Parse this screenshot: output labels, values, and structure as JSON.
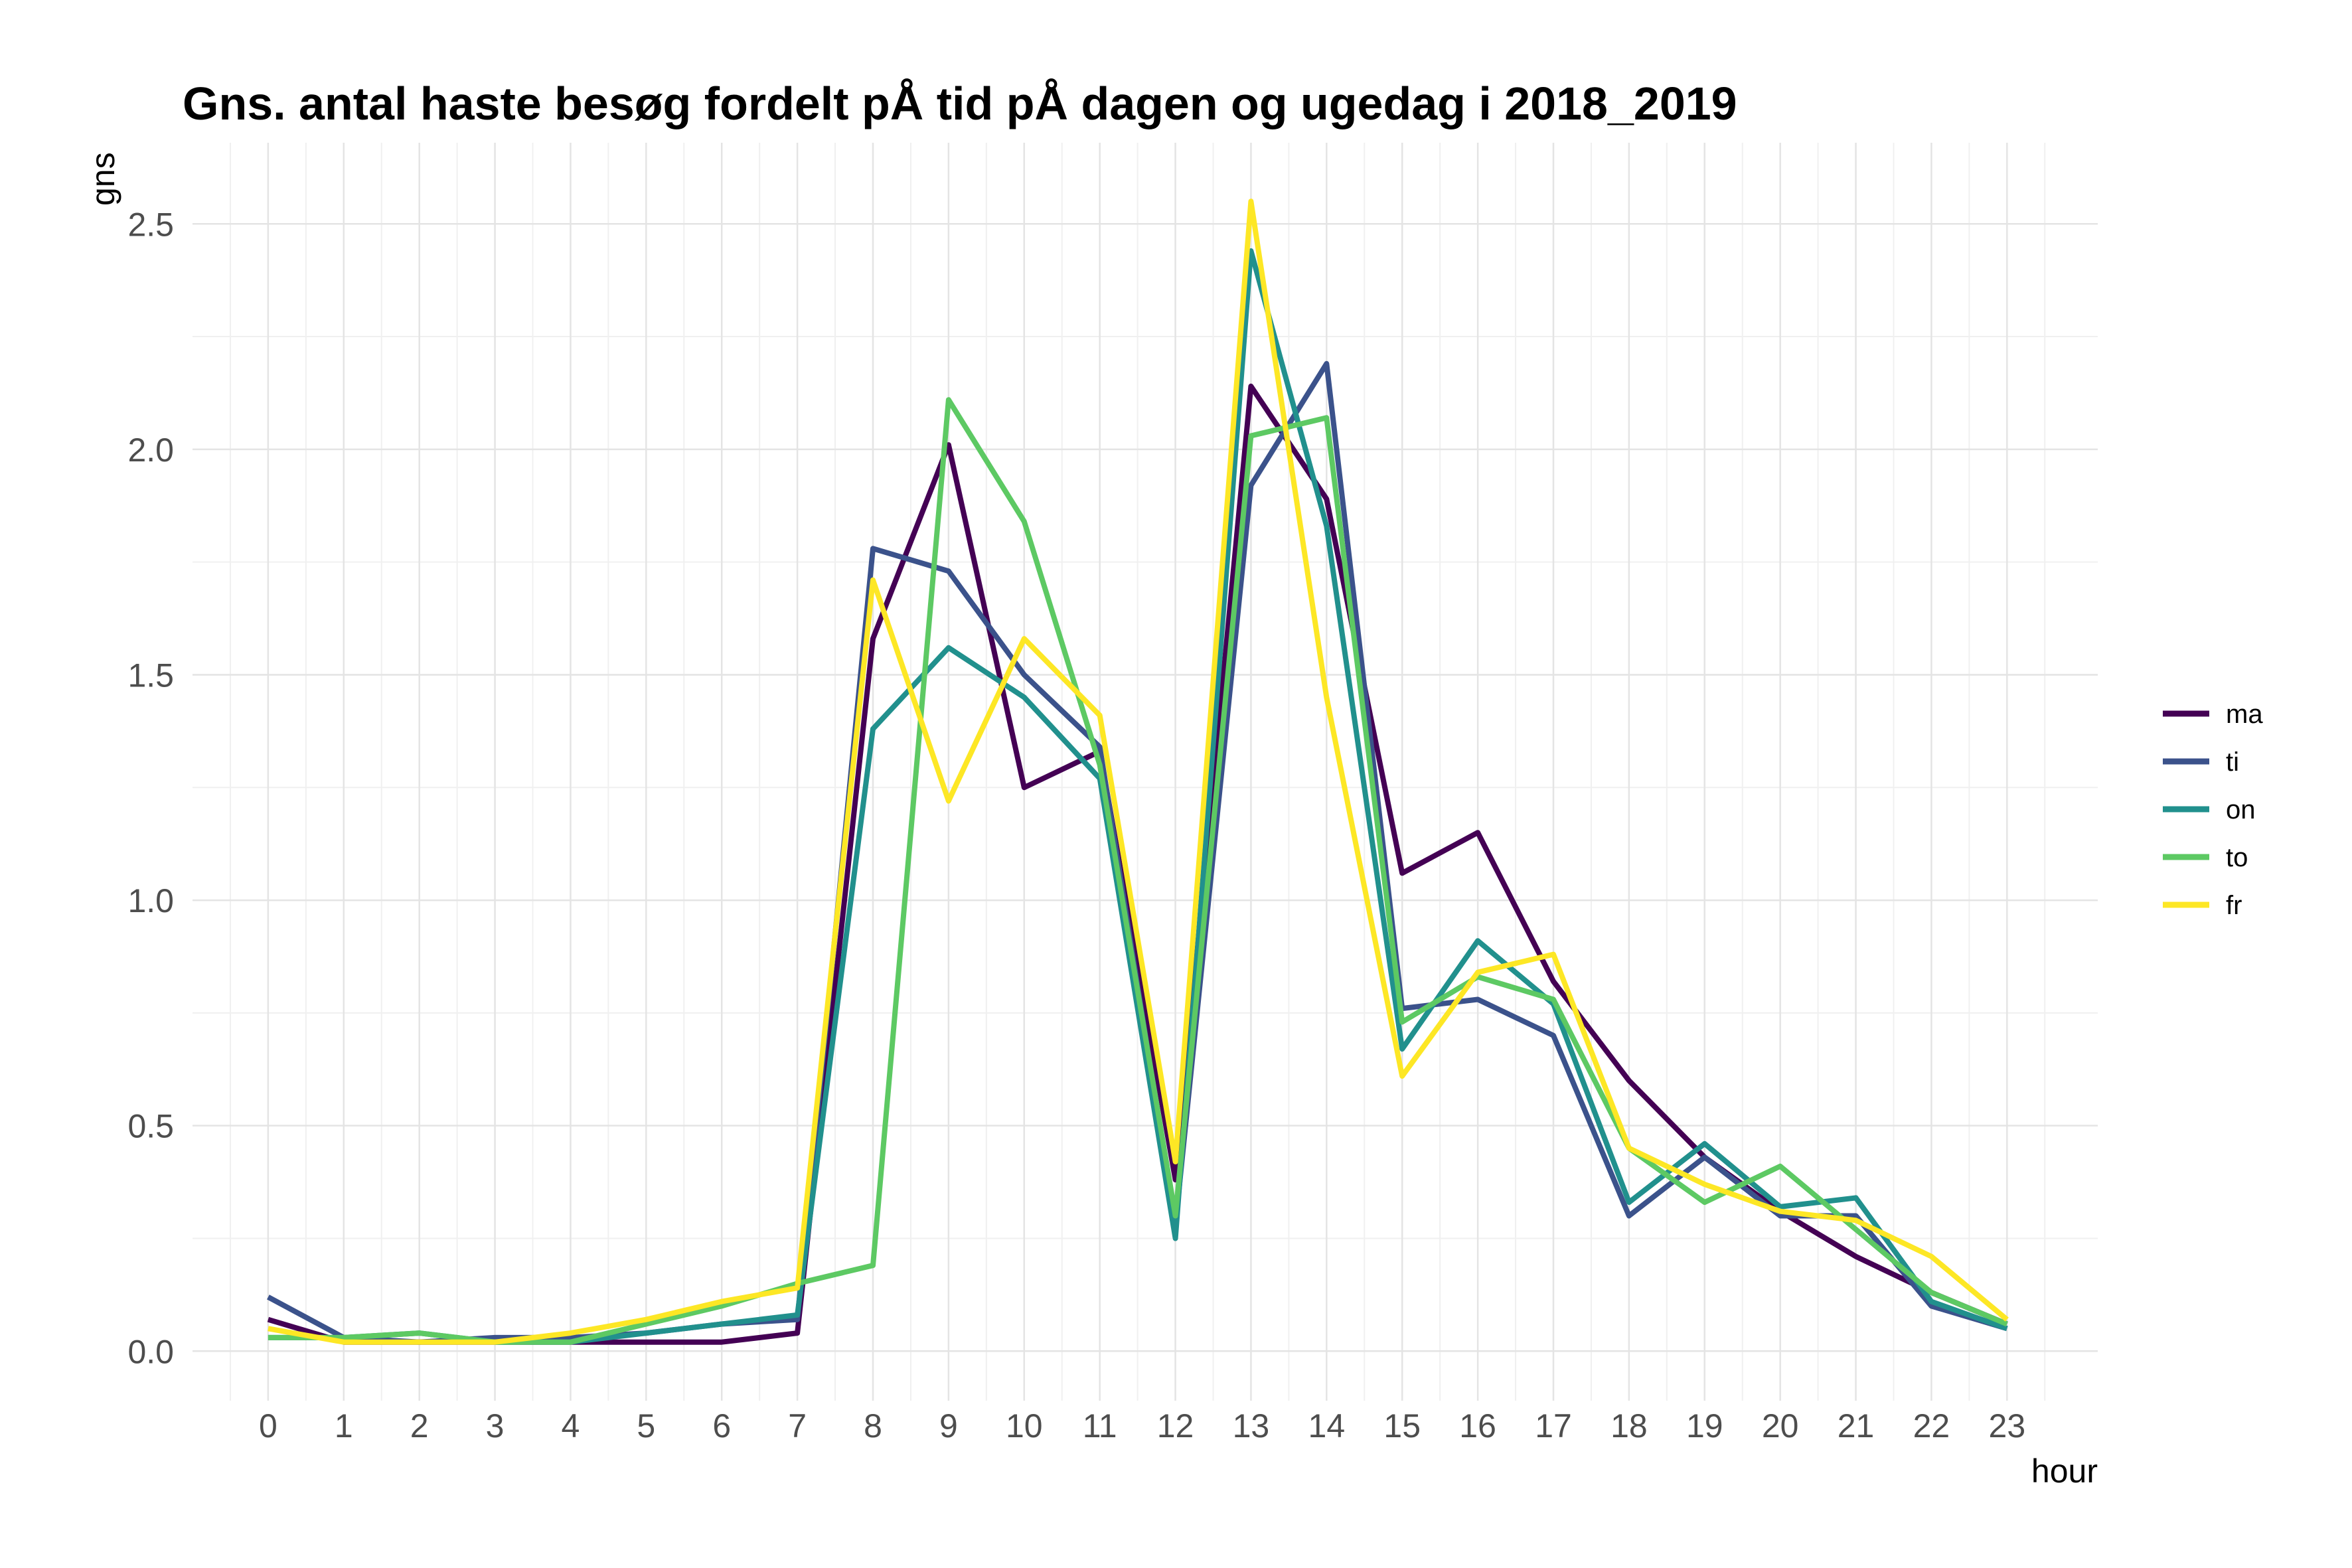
{
  "chart_data": {
    "type": "line",
    "title": "Gns. antal haste besøg fordelt pÅ tid pÅ dagen og ugedag i 2018_2019",
    "xlabel": "hour",
    "ylabel": "gns",
    "x": [
      0,
      1,
      2,
      3,
      4,
      5,
      6,
      7,
      8,
      9,
      10,
      11,
      12,
      13,
      14,
      15,
      16,
      17,
      18,
      19,
      20,
      21,
      22,
      23
    ],
    "x_tick_labels": [
      "0",
      "1",
      "2",
      "3",
      "4",
      "5",
      "6",
      "7",
      "8",
      "9",
      "10",
      "11",
      "12",
      "13",
      "14",
      "15",
      "16",
      "17",
      "18",
      "19",
      "20",
      "21",
      "22",
      "23"
    ],
    "y_ticks": [
      0.0,
      0.5,
      1.0,
      1.5,
      2.0,
      2.5
    ],
    "y_tick_labels": [
      "0.0",
      "0.5",
      "1.0",
      "1.5",
      "2.0",
      "2.5"
    ],
    "xlim": [
      -1,
      24.2
    ],
    "ylim": [
      -0.11,
      2.68
    ],
    "grid": true,
    "legend_position": "right",
    "series": [
      {
        "name": "ma",
        "color": "#440154",
        "values": [
          0.07,
          0.02,
          0.02,
          0.02,
          0.02,
          0.02,
          0.02,
          0.04,
          1.58,
          2.01,
          1.25,
          1.33,
          0.38,
          2.14,
          1.89,
          1.06,
          1.15,
          0.82,
          0.6,
          0.43,
          0.31,
          0.21,
          0.13,
          0.06
        ]
      },
      {
        "name": "ti",
        "color": "#3b528b",
        "values": [
          0.12,
          0.03,
          0.02,
          0.03,
          0.03,
          0.04,
          0.06,
          0.07,
          1.78,
          1.73,
          1.5,
          1.34,
          0.28,
          1.92,
          2.19,
          0.76,
          0.78,
          0.7,
          0.3,
          0.43,
          0.3,
          0.3,
          0.1,
          0.05
        ]
      },
      {
        "name": "on",
        "color": "#21908d",
        "values": [
          0.03,
          0.03,
          0.04,
          0.02,
          0.02,
          0.04,
          0.06,
          0.08,
          1.38,
          1.56,
          1.45,
          1.27,
          0.25,
          2.44,
          1.83,
          0.67,
          0.91,
          0.77,
          0.33,
          0.46,
          0.32,
          0.34,
          0.11,
          0.05
        ]
      },
      {
        "name": "to",
        "color": "#5dc963",
        "values": [
          0.03,
          0.03,
          0.04,
          0.02,
          0.02,
          0.06,
          0.1,
          0.15,
          0.19,
          2.11,
          1.84,
          1.3,
          0.3,
          2.03,
          2.07,
          0.73,
          0.83,
          0.78,
          0.45,
          0.33,
          0.41,
          0.27,
          0.13,
          0.06
        ]
      },
      {
        "name": "fr",
        "color": "#fde725",
        "values": [
          0.05,
          0.02,
          0.02,
          0.02,
          0.04,
          0.07,
          0.11,
          0.14,
          1.71,
          1.22,
          1.58,
          1.41,
          0.42,
          2.55,
          1.45,
          0.61,
          0.84,
          0.88,
          0.45,
          0.37,
          0.31,
          0.29,
          0.21,
          0.07
        ]
      }
    ]
  }
}
